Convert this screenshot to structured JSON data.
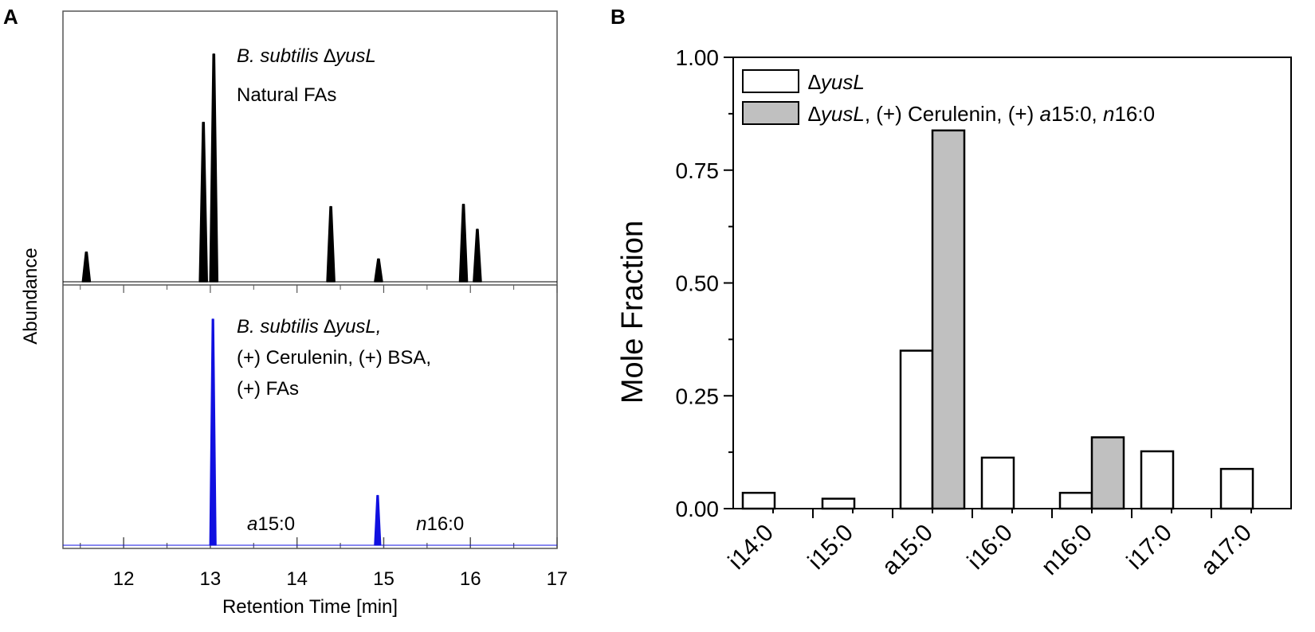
{
  "chart_data": [
    {
      "panel": "A",
      "type": "line",
      "xlabel": "Retention Time [min]",
      "ylabel": "Abundance",
      "xlim": [
        11.3,
        17.0
      ],
      "xticks": [
        "12",
        "13",
        "14",
        "15",
        "16",
        "17"
      ],
      "grid": false,
      "subplots": [
        {
          "name": "top",
          "label_line1_italic": "B. subtilis ",
          "label_line1_symbol": "∆",
          "label_line1_italic2": "yusL",
          "label_line2": "Natural FAs",
          "color": "#000000",
          "peaks": [
            {
              "x": 11.57,
              "height": 0.13
            },
            {
              "x": 12.92,
              "height": 0.7
            },
            {
              "x": 13.04,
              "height": 1.0
            },
            {
              "x": 14.39,
              "height": 0.33
            },
            {
              "x": 14.94,
              "height": 0.1
            },
            {
              "x": 15.92,
              "height": 0.34
            },
            {
              "x": 16.08,
              "height": 0.23
            }
          ]
        },
        {
          "name": "bottom",
          "label_line1_italic": "B. subtilis ",
          "label_line1_symbol": "∆",
          "label_line1_italic2": "yusL,",
          "label_line2": "(+) Cerulenin, (+) BSA,",
          "label_line3": "(+) FAs",
          "color": "#1010e0",
          "peaks": [
            {
              "x": 13.03,
              "height": 1.0
            },
            {
              "x": 14.93,
              "height": 0.22
            }
          ],
          "annotations": [
            {
              "italic": "a",
              "text": "15:0",
              "x": 13.7
            },
            {
              "italic": "n",
              "text": "16:0",
              "x": 15.65
            }
          ]
        }
      ]
    },
    {
      "panel": "B",
      "type": "bar",
      "ylabel": "Mole Fraction",
      "xlabel": "",
      "ylim": [
        0,
        1.0
      ],
      "yticks": [
        "0.00",
        "0.25",
        "0.50",
        "0.75",
        "1.00"
      ],
      "grid": false,
      "legend_position": "top-left",
      "categories": [
        "i14:0",
        "i15:0",
        "a15:0",
        "i16:0",
        "n16:0",
        "i17:0",
        "a17:0"
      ],
      "series": [
        {
          "name": "∆yusL",
          "legend_italic": "∆yusL",
          "legend_rest": "",
          "fill": "#ffffff",
          "values": [
            0.035,
            0.022,
            0.35,
            0.113,
            0.035,
            0.127,
            0.088
          ]
        },
        {
          "name": "∆yusL, (+) Cerulenin, (+) a15:0, n16:0",
          "legend_italic": "∆yusL",
          "legend_rest": ", (+) Cerulenin, (+) ",
          "legend_italic_a": "a",
          "legend_mid": "15:0, ",
          "legend_italic_n": "n",
          "legend_end": "16:0",
          "fill": "#c0c0c0",
          "values": [
            null,
            null,
            0.838,
            null,
            0.158,
            null,
            null
          ]
        }
      ]
    }
  ]
}
